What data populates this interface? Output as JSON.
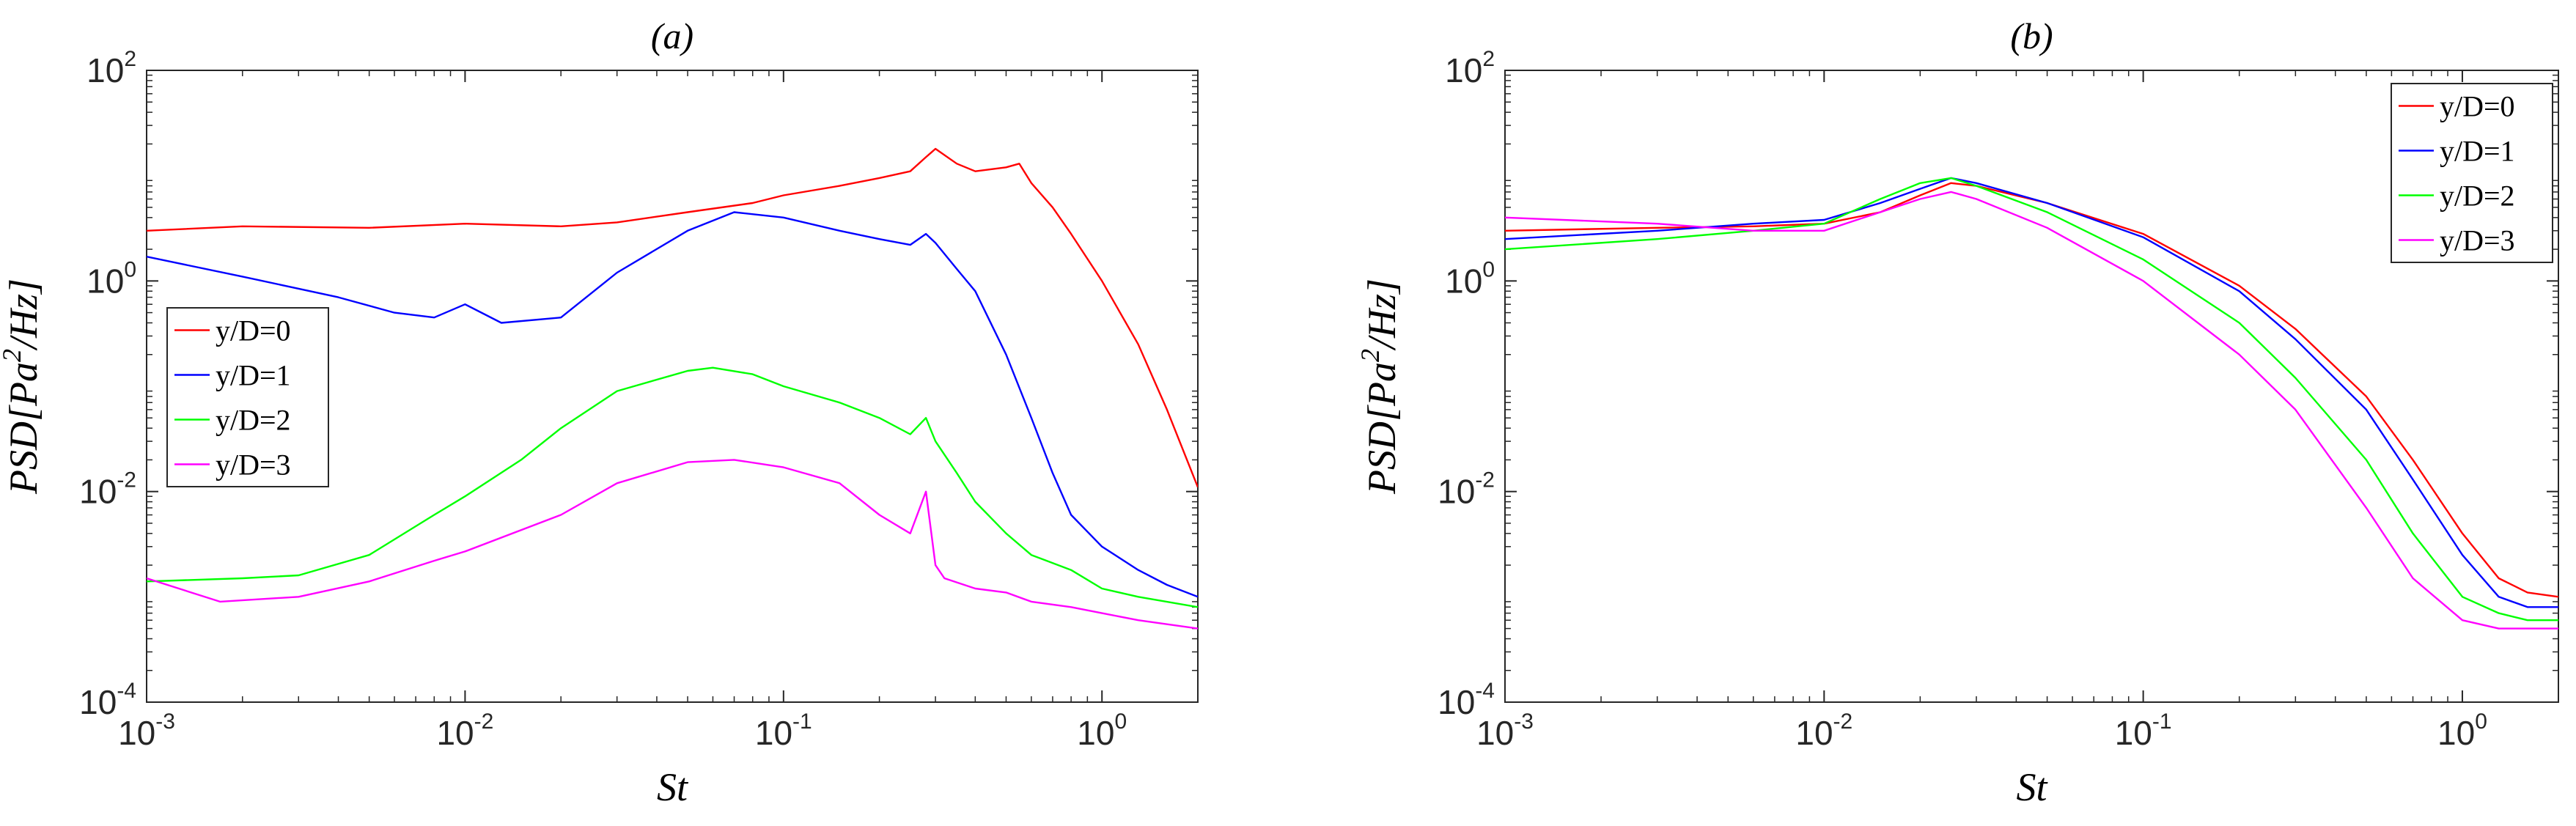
{
  "chart_data": [
    {
      "type": "line",
      "title": "(a)",
      "xlabel": "St",
      "ylabel": "PSD[Pa^2/Hz]",
      "xscale": "log",
      "yscale": "log",
      "xlim": [
        0.001,
        2
      ],
      "ylim": [
        0.0001,
        100
      ],
      "grid": false,
      "legend_loc": "center-left",
      "x_ticks": [
        {
          "base": "10",
          "exp": "-3",
          "value": 0.001
        },
        {
          "base": "10",
          "exp": "-2",
          "value": 0.01
        },
        {
          "base": "10",
          "exp": "-1",
          "value": 0.1
        },
        {
          "base": "10",
          "exp": "0",
          "value": 1
        }
      ],
      "y_ticks": [
        {
          "base": "10",
          "exp": "-4",
          "value": 0.0001
        },
        {
          "base": "10",
          "exp": "-2",
          "value": 0.01
        },
        {
          "base": "10",
          "exp": "0",
          "value": 1
        },
        {
          "base": "10",
          "exp": "2",
          "value": 100
        }
      ],
      "series": [
        {
          "name": "y/D=0",
          "color": "#ff0000",
          "x": [
            0.001,
            0.002,
            0.005,
            0.01,
            0.02,
            0.03,
            0.05,
            0.08,
            0.1,
            0.15,
            0.2,
            0.25,
            0.28,
            0.3,
            0.35,
            0.4,
            0.5,
            0.55,
            0.6,
            0.7,
            0.8,
            1.0,
            1.3,
            1.6,
            2.0
          ],
          "y": [
            3.0,
            3.3,
            3.2,
            3.5,
            3.3,
            3.6,
            4.5,
            5.5,
            6.5,
            8.0,
            9.5,
            11,
            15,
            18,
            13,
            11,
            12,
            13,
            8.5,
            5.0,
            2.8,
            1.0,
            0.25,
            0.06,
            0.011
          ]
        },
        {
          "name": "y/D=1",
          "color": "#0000ff",
          "x": [
            0.001,
            0.002,
            0.004,
            0.006,
            0.008,
            0.01,
            0.013,
            0.02,
            0.03,
            0.05,
            0.07,
            0.1,
            0.15,
            0.2,
            0.25,
            0.28,
            0.3,
            0.35,
            0.4,
            0.5,
            0.6,
            0.7,
            0.8,
            1.0,
            1.3,
            1.6,
            2.0
          ],
          "y": [
            1.7,
            1.1,
            0.7,
            0.5,
            0.45,
            0.6,
            0.4,
            0.45,
            1.2,
            3.0,
            4.5,
            4.0,
            3.0,
            2.5,
            2.2,
            2.8,
            2.3,
            1.3,
            0.8,
            0.2,
            0.05,
            0.015,
            0.006,
            0.003,
            0.0018,
            0.0013,
            0.001
          ]
        },
        {
          "name": "y/D=2",
          "color": "#00ff00",
          "x": [
            0.001,
            0.002,
            0.003,
            0.005,
            0.008,
            0.01,
            0.015,
            0.02,
            0.03,
            0.05,
            0.06,
            0.08,
            0.1,
            0.15,
            0.2,
            0.25,
            0.28,
            0.3,
            0.35,
            0.4,
            0.5,
            0.6,
            0.8,
            1.0,
            1.3,
            2.0
          ],
          "y": [
            0.0014,
            0.0015,
            0.0016,
            0.0025,
            0.006,
            0.009,
            0.02,
            0.04,
            0.09,
            0.14,
            0.15,
            0.13,
            0.1,
            0.07,
            0.05,
            0.035,
            0.05,
            0.03,
            0.015,
            0.008,
            0.004,
            0.0025,
            0.0018,
            0.0012,
            0.001,
            0.0008
          ]
        },
        {
          "name": "y/D=3",
          "color": "#ff00ff",
          "x": [
            0.001,
            0.0017,
            0.003,
            0.005,
            0.008,
            0.01,
            0.02,
            0.03,
            0.05,
            0.07,
            0.1,
            0.15,
            0.2,
            0.25,
            0.28,
            0.3,
            0.32,
            0.4,
            0.5,
            0.6,
            0.8,
            1.0,
            1.3,
            2.0
          ],
          "y": [
            0.0015,
            0.0009,
            0.001,
            0.0014,
            0.0022,
            0.0027,
            0.006,
            0.012,
            0.019,
            0.02,
            0.017,
            0.012,
            0.006,
            0.004,
            0.01,
            0.002,
            0.0015,
            0.0012,
            0.0011,
            0.0009,
            0.0008,
            0.0007,
            0.0006,
            0.0005
          ]
        }
      ]
    },
    {
      "type": "line",
      "title": "(b)",
      "xlabel": "St",
      "ylabel": "PSD[Pa^2/Hz]",
      "xscale": "log",
      "yscale": "log",
      "xlim": [
        0.001,
        2
      ],
      "ylim": [
        0.0001,
        100
      ],
      "grid": false,
      "legend_loc": "top-right",
      "x_ticks": [
        {
          "base": "10",
          "exp": "-3",
          "value": 0.001
        },
        {
          "base": "10",
          "exp": "-2",
          "value": 0.01
        },
        {
          "base": "10",
          "exp": "-1",
          "value": 0.1
        },
        {
          "base": "10",
          "exp": "0",
          "value": 1
        }
      ],
      "y_ticks": [
        {
          "base": "10",
          "exp": "-4",
          "value": 0.0001
        },
        {
          "base": "10",
          "exp": "-2",
          "value": 0.01
        },
        {
          "base": "10",
          "exp": "0",
          "value": 1
        },
        {
          "base": "10",
          "exp": "2",
          "value": 100
        }
      ],
      "series": [
        {
          "name": "y/D=0",
          "color": "#ff0000",
          "x": [
            0.001,
            0.003,
            0.006,
            0.01,
            0.015,
            0.02,
            0.025,
            0.03,
            0.05,
            0.1,
            0.2,
            0.3,
            0.5,
            0.7,
            1.0,
            1.3,
            1.6,
            2.0
          ],
          "y": [
            3.0,
            3.2,
            3.3,
            3.5,
            4.5,
            6.5,
            8.5,
            8.0,
            5.5,
            2.8,
            0.9,
            0.35,
            0.08,
            0.02,
            0.004,
            0.0015,
            0.0011,
            0.001
          ]
        },
        {
          "name": "y/D=1",
          "color": "#0000ff",
          "x": [
            0.001,
            0.003,
            0.006,
            0.01,
            0.015,
            0.02,
            0.025,
            0.03,
            0.05,
            0.1,
            0.2,
            0.3,
            0.5,
            0.7,
            1.0,
            1.3,
            1.6,
            2.0
          ],
          "y": [
            2.5,
            3.0,
            3.5,
            3.8,
            5.5,
            7.5,
            9.5,
            8.5,
            5.5,
            2.6,
            0.8,
            0.28,
            0.06,
            0.013,
            0.0025,
            0.001,
            0.0008,
            0.0008
          ]
        },
        {
          "name": "y/D=2",
          "color": "#00ff00",
          "x": [
            0.001,
            0.003,
            0.006,
            0.01,
            0.015,
            0.02,
            0.025,
            0.03,
            0.05,
            0.1,
            0.2,
            0.3,
            0.5,
            0.7,
            1.0,
            1.3,
            1.6,
            2.0
          ],
          "y": [
            2.0,
            2.5,
            3.0,
            3.5,
            6.0,
            8.5,
            9.5,
            8.0,
            4.5,
            1.6,
            0.4,
            0.12,
            0.02,
            0.004,
            0.001,
            0.0007,
            0.0006,
            0.0006
          ]
        },
        {
          "name": "y/D=3",
          "color": "#ff00ff",
          "x": [
            0.001,
            0.003,
            0.006,
            0.01,
            0.015,
            0.02,
            0.025,
            0.03,
            0.05,
            0.1,
            0.2,
            0.3,
            0.5,
            0.7,
            1.0,
            1.3,
            1.6,
            2.0
          ],
          "y": [
            4.0,
            3.5,
            3.0,
            3.0,
            4.5,
            6.0,
            7.0,
            6.0,
            3.2,
            1.0,
            0.2,
            0.06,
            0.007,
            0.0015,
            0.0006,
            0.0005,
            0.0005,
            0.0005
          ]
        }
      ]
    }
  ]
}
